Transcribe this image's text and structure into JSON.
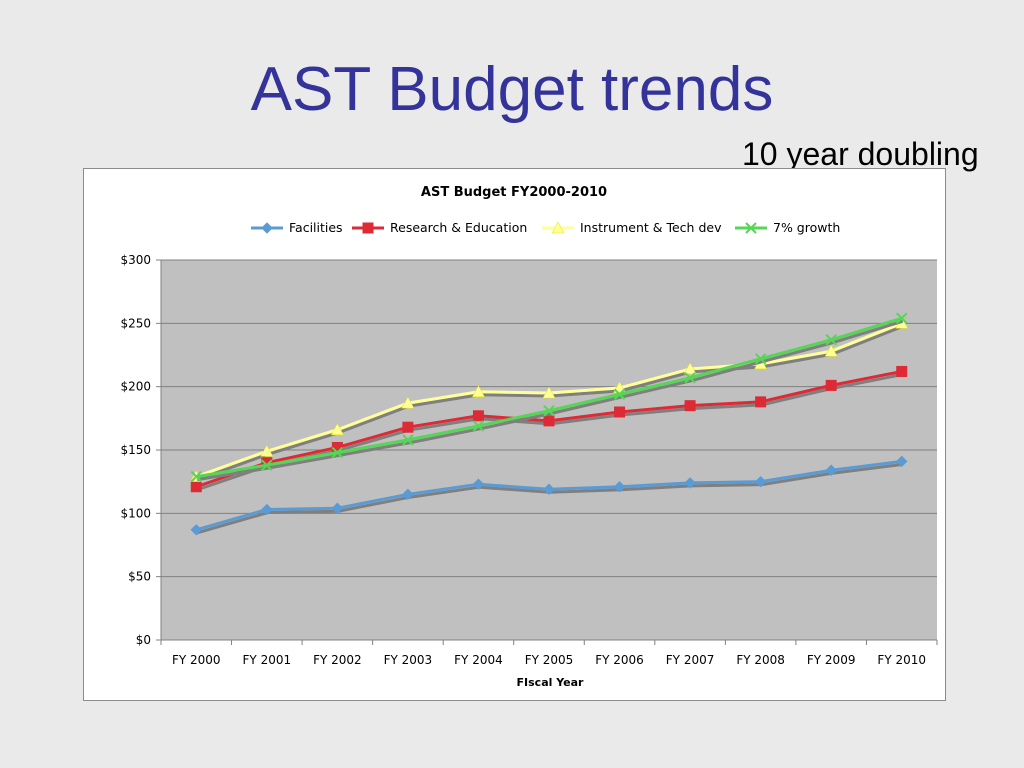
{
  "slide": {
    "title": "AST Budget trends",
    "annotation": "10 year doubling"
  },
  "colors": {
    "title": "#333399",
    "plot_background": "#c0c0c0",
    "gridline": "#808080"
  },
  "chart_data": {
    "type": "line",
    "title": "AST Budget FY2000-2010",
    "xlabel": "FIscal Year",
    "ylabel": "",
    "categories": [
      "FY 2000",
      "FY 2001",
      "FY 2002",
      "FY 2003",
      "FY 2004",
      "FY 2005",
      "FY 2006",
      "FY 2007",
      "FY 2008",
      "FY 2009",
      "FY 2010"
    ],
    "ylim": [
      0,
      300
    ],
    "yticks": [
      0,
      50,
      100,
      150,
      200,
      250,
      300
    ],
    "ytick_labels": [
      "$0",
      "$50",
      "$100",
      "$150",
      "$200",
      "$250",
      "$300"
    ],
    "grid": true,
    "legend_position": "top",
    "series": [
      {
        "name": "Facilities",
        "color": "#5b9bd5",
        "marker": "diamond",
        "values": [
          87,
          103,
          104,
          115,
          123,
          119,
          121,
          124,
          125,
          134,
          141
        ]
      },
      {
        "name": "Research & Education",
        "color": "#dd2a35",
        "marker": "square",
        "values": [
          121,
          140,
          152,
          168,
          177,
          173,
          180,
          185,
          188,
          201,
          212
        ]
      },
      {
        "name": "Instrument & Tech dev",
        "color": "#ffff99",
        "marker": "triangle",
        "values": [
          129,
          149,
          166,
          187,
          196,
          195,
          199,
          214,
          218,
          228,
          250
        ]
      },
      {
        "name": "7% growth",
        "color": "#55d655",
        "marker": "x",
        "values": [
          129,
          138,
          148,
          158,
          169,
          181,
          194,
          207,
          222,
          237,
          254
        ]
      }
    ]
  }
}
